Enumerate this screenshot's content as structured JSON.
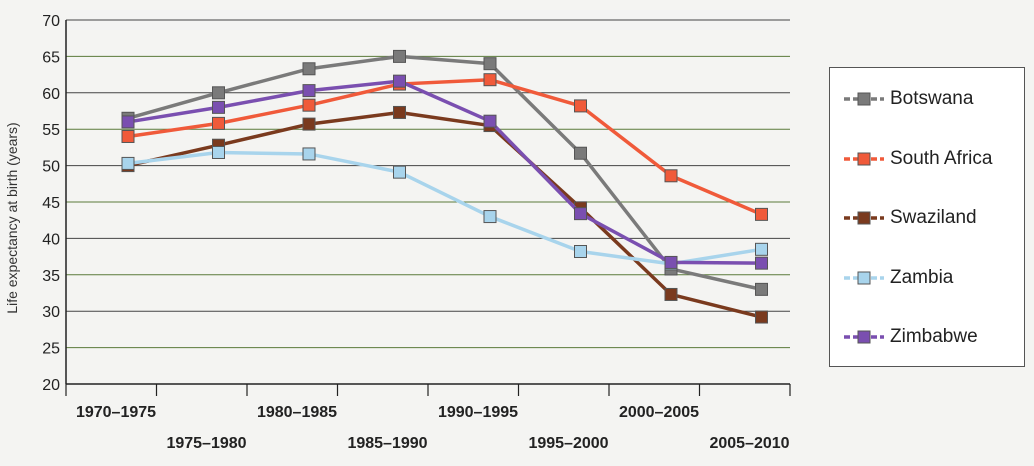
{
  "chart_data": {
    "type": "line",
    "title": "",
    "ylabel": "Life expectancy at birth (years)",
    "xlabel": "",
    "ylim": [
      20,
      70
    ],
    "yticks": [
      20,
      25,
      30,
      35,
      40,
      45,
      50,
      55,
      60,
      65,
      70
    ],
    "grid": true,
    "legend_position": "right",
    "categories": [
      "1970–1975",
      "1975–1980",
      "1980–1985",
      "1985–1990",
      "1990–1995",
      "1995–2000",
      "2000–2005",
      "2005–2010"
    ],
    "series": [
      {
        "name": "Botswana",
        "color": "#7a7a7a",
        "values": [
          56.5,
          60,
          63.3,
          65,
          64,
          51.7,
          35.8,
          33
        ]
      },
      {
        "name": "South Africa",
        "color": "#f05a3a",
        "values": [
          54,
          55.8,
          58.3,
          61.2,
          61.8,
          58.2,
          48.6,
          43.3
        ]
      },
      {
        "name": "Swaziland",
        "color": "#7a3a1e",
        "values": [
          50,
          52.8,
          55.7,
          57.3,
          55.5,
          44.2,
          32.3,
          29.2
        ]
      },
      {
        "name": "Zambia",
        "color": "#a8d4ec",
        "values": [
          50.3,
          51.8,
          51.6,
          49.1,
          43,
          38.2,
          36.5,
          38.5
        ]
      },
      {
        "name": "Zimbabwe",
        "color": "#7a4fb0",
        "values": [
          56,
          58,
          60.3,
          61.6,
          56.1,
          43.4,
          36.7,
          36.6
        ]
      }
    ]
  }
}
